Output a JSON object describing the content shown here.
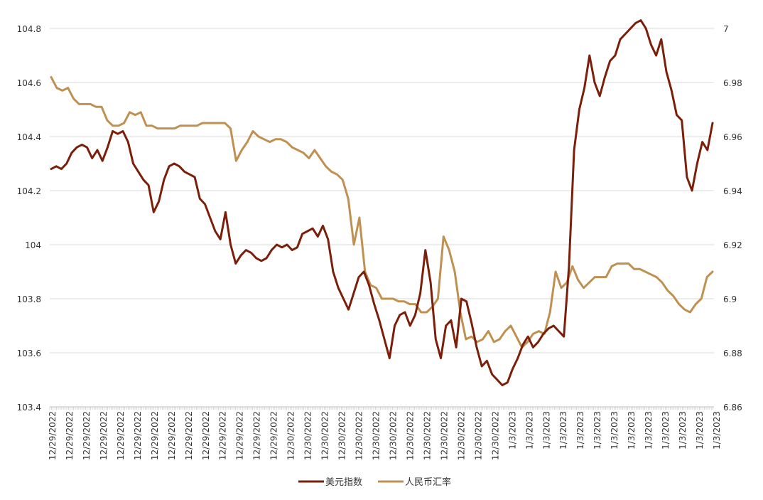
{
  "chart_data": {
    "type": "line",
    "title": "",
    "xlabel": "",
    "ylabel": "",
    "y2label": "",
    "grid": true,
    "legend_position": "bottom",
    "left_axis": {
      "min": 103.4,
      "max": 104.8,
      "ticks": [
        "103.4",
        "103.6",
        "103.8",
        "104",
        "104.2",
        "104.4",
        "104.6",
        "104.8"
      ],
      "tick_values": [
        103.4,
        103.6,
        103.8,
        104.0,
        104.2,
        104.4,
        104.6,
        104.8
      ]
    },
    "right_axis": {
      "min": 6.86,
      "max": 7.0,
      "ticks": [
        "6.86",
        "6.88",
        "6.9",
        "6.92",
        "6.94",
        "6.96",
        "6.98",
        "7"
      ],
      "tick_values": [
        6.86,
        6.88,
        6.9,
        6.92,
        6.94,
        6.96,
        6.98,
        7.0
      ]
    },
    "x_tick_labels": [
      "12/29/2022",
      "12/29/2022",
      "12/29/2022",
      "12/29/2022",
      "12/29/2022",
      "12/29/2022",
      "12/29/2022",
      "12/29/2022",
      "12/29/2022",
      "12/29/2022",
      "12/29/2022",
      "12/29/2022",
      "12/29/2022",
      "12/29/2022",
      "12/30/2022",
      "12/30/2022",
      "12/30/2022",
      "12/30/2022",
      "12/30/2022",
      "12/30/2022",
      "12/30/2022",
      "12/30/2022",
      "12/30/2022",
      "12/30/2022",
      "12/30/2022",
      "12/30/2022",
      "12/30/2022",
      "1/3/2023",
      "1/3/2023",
      "1/3/2023",
      "1/3/2023",
      "1/3/2023",
      "1/3/2023",
      "1/3/2023",
      "1/3/2023",
      "1/3/2023",
      "1/3/2023",
      "1/3/2023",
      "1/3/2023",
      "1/3/2023"
    ],
    "series": [
      {
        "name": "美元指数",
        "axis": "left",
        "color": "#7b1f0a",
        "values": [
          104.28,
          104.29,
          104.28,
          104.3,
          104.34,
          104.36,
          104.37,
          104.36,
          104.32,
          104.35,
          104.31,
          104.36,
          104.42,
          104.41,
          104.42,
          104.38,
          104.3,
          104.27,
          104.24,
          104.22,
          104.12,
          104.16,
          104.24,
          104.29,
          104.3,
          104.29,
          104.27,
          104.26,
          104.25,
          104.17,
          104.15,
          104.1,
          104.05,
          104.02,
          104.12,
          104.0,
          103.93,
          103.96,
          103.98,
          103.97,
          103.95,
          103.94,
          103.95,
          103.98,
          104.0,
          103.99,
          104.0,
          103.98,
          103.99,
          104.04,
          104.05,
          104.06,
          104.03,
          104.07,
          104.02,
          103.9,
          103.84,
          103.8,
          103.76,
          103.82,
          103.88,
          103.9,
          103.85,
          103.78,
          103.72,
          103.65,
          103.58,
          103.7,
          103.74,
          103.75,
          103.7,
          103.74,
          103.82,
          103.98,
          103.86,
          103.65,
          103.58,
          103.7,
          103.72,
          103.62,
          103.8,
          103.79,
          103.71,
          103.62,
          103.55,
          103.57,
          103.52,
          103.5,
          103.48,
          103.49,
          103.54,
          103.58,
          103.63,
          103.66,
          103.62,
          103.64,
          103.67,
          103.69,
          103.7,
          103.68,
          103.66,
          103.92,
          104.35,
          104.5,
          104.58,
          104.7,
          104.6,
          104.55,
          104.62,
          104.68,
          104.7,
          104.76,
          104.78,
          104.8,
          104.82,
          104.83,
          104.8,
          104.74,
          104.7,
          104.76,
          104.64,
          104.57,
          104.48,
          104.46,
          104.25,
          104.2,
          104.3,
          104.38,
          104.35,
          104.45
        ]
      },
      {
        "name": "人民币汇率",
        "axis": "right",
        "color": "#c09050",
        "values": [
          6.982,
          6.978,
          6.977,
          6.978,
          6.974,
          6.972,
          6.972,
          6.972,
          6.971,
          6.971,
          6.966,
          6.964,
          6.964,
          6.965,
          6.969,
          6.968,
          6.969,
          6.964,
          6.964,
          6.963,
          6.963,
          6.963,
          6.963,
          6.964,
          6.964,
          6.964,
          6.964,
          6.965,
          6.965,
          6.965,
          6.965,
          6.965,
          6.963,
          6.951,
          6.955,
          6.958,
          6.962,
          6.96,
          6.959,
          6.958,
          6.959,
          6.959,
          6.958,
          6.956,
          6.955,
          6.954,
          6.952,
          6.955,
          6.952,
          6.949,
          6.947,
          6.946,
          6.944,
          6.937,
          6.92,
          6.93,
          6.91,
          6.905,
          6.904,
          6.9,
          6.9,
          6.9,
          6.899,
          6.899,
          6.898,
          6.898,
          6.895,
          6.895,
          6.897,
          6.9,
          6.923,
          6.918,
          6.91,
          6.895,
          6.885,
          6.886,
          6.884,
          6.885,
          6.888,
          6.884,
          6.885,
          6.888,
          6.89,
          6.886,
          6.882,
          6.884,
          6.887,
          6.888,
          6.887,
          6.895,
          6.91,
          6.904,
          6.906,
          6.912,
          6.907,
          6.904,
          6.906,
          6.908,
          6.908,
          6.908,
          6.912,
          6.913,
          6.913,
          6.913,
          6.911,
          6.911,
          6.91,
          6.909,
          6.908,
          6.906,
          6.903,
          6.901,
          6.898,
          6.896,
          6.895,
          6.898,
          6.9,
          6.908,
          6.91
        ]
      }
    ]
  }
}
